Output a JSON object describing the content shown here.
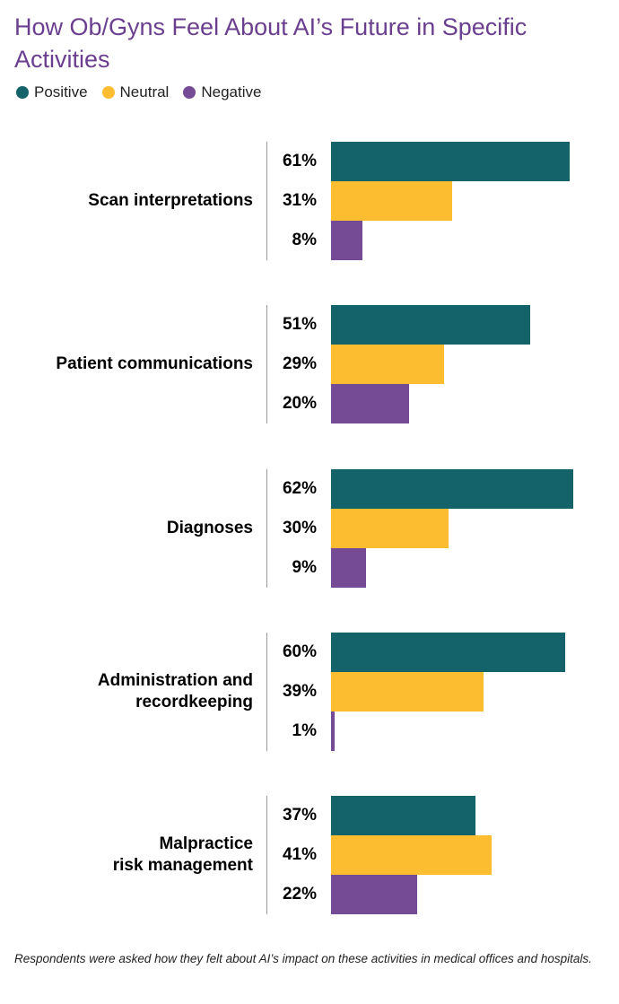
{
  "chart_data": {
    "type": "bar",
    "orientation": "horizontal",
    "title": "How Ob/Gyns Feel About AI’s Future in Specific Activities",
    "categories": [
      "Scan interpretations",
      "Patient communications",
      "Diagnoses",
      "Administration and\nrecordkeeping",
      "Malpractice\nrisk management"
    ],
    "series": [
      {
        "name": "Positive",
        "color": "#14636b",
        "values": [
          61,
          51,
          62,
          60,
          37
        ],
        "value_labels": [
          "61%",
          "51%",
          "62%",
          "60%",
          "37%"
        ]
      },
      {
        "name": "Neutral",
        "color": "#fdbd30",
        "values": [
          31,
          29,
          30,
          39,
          41
        ],
        "value_labels": [
          "31%",
          "29%",
          "30%",
          "39%",
          "41%"
        ]
      },
      {
        "name": "Negative",
        "color": "#744b94",
        "values": [
          8,
          20,
          9,
          1,
          22
        ],
        "value_labels": [
          "8%",
          "20%",
          "9%",
          "1%",
          "22%"
        ]
      }
    ],
    "note": "Respondents were asked how they felt about AI’s impact on these activities in medical offices and hospitals."
  }
}
